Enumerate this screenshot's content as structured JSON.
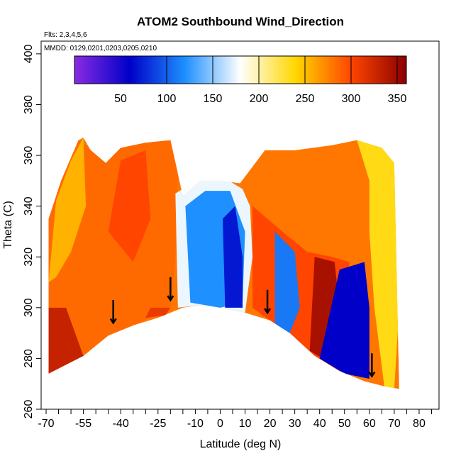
{
  "chart_data": {
    "type": "heatmap",
    "title": "ATOM2 Southbound Wind_Direction",
    "flights_note": "Flts: 2,3,4,5,6",
    "dates_note": "MMDD: 0129,0201,0203,0205,0210",
    "xlabel": "Latitude (deg N)",
    "ylabel": "Theta (C)",
    "xlim": [
      -72,
      88
    ],
    "ylim": [
      260,
      405
    ],
    "x_ticks": [
      "-70",
      "-55",
      "-40",
      "-25",
      "-10",
      "0",
      "10",
      "20",
      "30",
      "40",
      "50",
      "60",
      "70",
      "80"
    ],
    "x_tick_values": [
      -70,
      -55,
      -40,
      -25,
      -10,
      0,
      10,
      20,
      30,
      40,
      50,
      60,
      70,
      80
    ],
    "x_minor_ticks": [
      -65,
      -60,
      -50,
      -45,
      -35,
      -30,
      -20,
      -15,
      -5,
      5,
      15,
      25,
      35,
      45,
      55,
      65,
      75,
      85
    ],
    "y_ticks": [
      "260",
      "280",
      "300",
      "320",
      "340",
      "360",
      "380",
      "400"
    ],
    "y_tick_values": [
      260,
      280,
      300,
      320,
      340,
      360,
      380,
      400
    ],
    "colorbar": {
      "range": [
        0,
        360
      ],
      "tick_labels": [
        "50",
        "100",
        "150",
        "200",
        "250",
        "300",
        "350"
      ],
      "tick_values": [
        50,
        100,
        150,
        200,
        250,
        300,
        350
      ],
      "divider_values": [
        100,
        150,
        200,
        250,
        300,
        350
      ],
      "colors": [
        "#8a2be2",
        "#0000c8",
        "#1e90ff",
        "#ffffff",
        "#ffd700",
        "#ff4500",
        "#8b0000"
      ]
    },
    "field_top": [
      [
        -69,
        335
      ],
      [
        -64,
        350
      ],
      [
        -57,
        366
      ],
      [
        -55,
        367
      ],
      [
        -52,
        362
      ],
      [
        -46,
        357
      ],
      [
        -40,
        363
      ],
      [
        -30,
        365
      ],
      [
        -20,
        366
      ],
      [
        -15,
        344
      ],
      [
        -8,
        350
      ],
      [
        0,
        350
      ],
      [
        8,
        349
      ],
      [
        18,
        362
      ],
      [
        30,
        362
      ],
      [
        45,
        364
      ],
      [
        55,
        366
      ],
      [
        65,
        363
      ],
      [
        70,
        357
      ]
    ],
    "field_bottom": [
      [
        -69,
        274
      ],
      [
        -55,
        281
      ],
      [
        -45,
        289
      ],
      [
        -35,
        293
      ],
      [
        -25,
        296
      ],
      [
        -15,
        300
      ],
      [
        -8,
        301
      ],
      [
        0,
        300
      ],
      [
        10,
        298
      ],
      [
        20,
        295
      ],
      [
        28,
        290
      ],
      [
        38,
        281
      ],
      [
        48,
        275
      ],
      [
        58,
        271
      ],
      [
        66,
        269
      ],
      [
        72,
        268
      ]
    ],
    "regions": [
      {
        "direction": 285,
        "polygon": [
          [
            -69,
            274
          ],
          [
            -69,
            335
          ],
          [
            -64,
            350
          ],
          [
            -57,
            366
          ],
          [
            -52,
            362
          ],
          [
            -46,
            357
          ],
          [
            -40,
            363
          ],
          [
            -30,
            365
          ],
          [
            -20,
            366
          ],
          [
            -17,
            355
          ],
          [
            -18,
            320
          ],
          [
            -20,
            300
          ],
          [
            -35,
            293
          ],
          [
            -45,
            289
          ],
          [
            -55,
            281
          ]
        ]
      },
      {
        "direction": 255,
        "polygon": [
          [
            -69,
            310
          ],
          [
            -66,
            342
          ],
          [
            -60,
            358
          ],
          [
            -55,
            367
          ],
          [
            -54,
            340
          ],
          [
            -60,
            322
          ],
          [
            -66,
            312
          ]
        ]
      },
      {
        "direction": 300,
        "polygon": [
          [
            -45,
            330
          ],
          [
            -40,
            358
          ],
          [
            -30,
            362
          ],
          [
            -28,
            335
          ],
          [
            -35,
            318
          ]
        ]
      },
      {
        "direction": 175,
        "polygon": [
          [
            -17,
            300
          ],
          [
            -18,
            345
          ],
          [
            -8,
            351
          ],
          [
            0,
            351
          ],
          [
            8,
            349
          ],
          [
            12,
            340
          ],
          [
            13,
            320
          ],
          [
            10,
            298
          ],
          [
            0,
            300
          ],
          [
            -8,
            301
          ]
        ]
      },
      {
        "direction": 120,
        "polygon": [
          [
            -12,
            302
          ],
          [
            -14,
            340
          ],
          [
            -6,
            346
          ],
          [
            4,
            346
          ],
          [
            10,
            330
          ],
          [
            9,
            302
          ],
          [
            0,
            300
          ]
        ]
      },
      {
        "direction": 70,
        "polygon": [
          [
            2,
            300
          ],
          [
            1,
            335
          ],
          [
            6,
            340
          ],
          [
            9,
            320
          ],
          [
            9,
            300
          ]
        ]
      },
      {
        "direction": 280,
        "polygon": [
          [
            -20,
            366
          ],
          [
            -10,
            362
          ],
          [
            10,
            362
          ],
          [
            30,
            362
          ],
          [
            45,
            364
          ],
          [
            55,
            366
          ],
          [
            60,
            364
          ],
          [
            58,
            340
          ],
          [
            50,
            330
          ],
          [
            40,
            322
          ],
          [
            30,
            330
          ],
          [
            20,
            340
          ],
          [
            12,
            345
          ],
          [
            0,
            352
          ],
          [
            -17,
            355
          ]
        ]
      },
      {
        "direction": 300,
        "polygon": [
          [
            13,
            340
          ],
          [
            13,
            300
          ],
          [
            20,
            295
          ],
          [
            28,
            290
          ],
          [
            38,
            281
          ],
          [
            48,
            275
          ],
          [
            50,
            300
          ],
          [
            52,
            318
          ],
          [
            45,
            320
          ],
          [
            35,
            322
          ],
          [
            25,
            330
          ]
        ]
      },
      {
        "direction": 235,
        "polygon": [
          [
            55,
            366
          ],
          [
            65,
            363
          ],
          [
            70,
            357
          ],
          [
            72,
            300
          ],
          [
            70,
            268
          ],
          [
            66,
            269
          ],
          [
            62,
            300
          ],
          [
            60,
            330
          ],
          [
            60,
            350
          ]
        ]
      },
      {
        "direction": 345,
        "polygon": [
          [
            36,
            283
          ],
          [
            38,
            320
          ],
          [
            46,
            318
          ],
          [
            48,
            300
          ],
          [
            48,
            276
          ]
        ]
      },
      {
        "direction": 60,
        "polygon": [
          [
            40,
            280
          ],
          [
            48,
            315
          ],
          [
            58,
            318
          ],
          [
            60,
            300
          ],
          [
            60,
            272
          ],
          [
            50,
            274
          ]
        ]
      },
      {
        "direction": 110,
        "polygon": [
          [
            22,
            293
          ],
          [
            22,
            330
          ],
          [
            30,
            322
          ],
          [
            32,
            300
          ],
          [
            28,
            290
          ]
        ]
      },
      {
        "direction": 330,
        "polygon": [
          [
            -69,
            274
          ],
          [
            -69,
            300
          ],
          [
            -62,
            300
          ],
          [
            -55,
            281
          ]
        ]
      },
      {
        "direction": 310,
        "polygon": [
          [
            -30,
            296
          ],
          [
            -28,
            300
          ],
          [
            -20,
            300
          ],
          [
            -22,
            297
          ]
        ]
      }
    ],
    "arrows": [
      {
        "lat": -43,
        "theta": 295
      },
      {
        "lat": -20,
        "theta": 304
      },
      {
        "lat": 19,
        "theta": 299
      },
      {
        "lat": 61,
        "theta": 274
      }
    ]
  }
}
